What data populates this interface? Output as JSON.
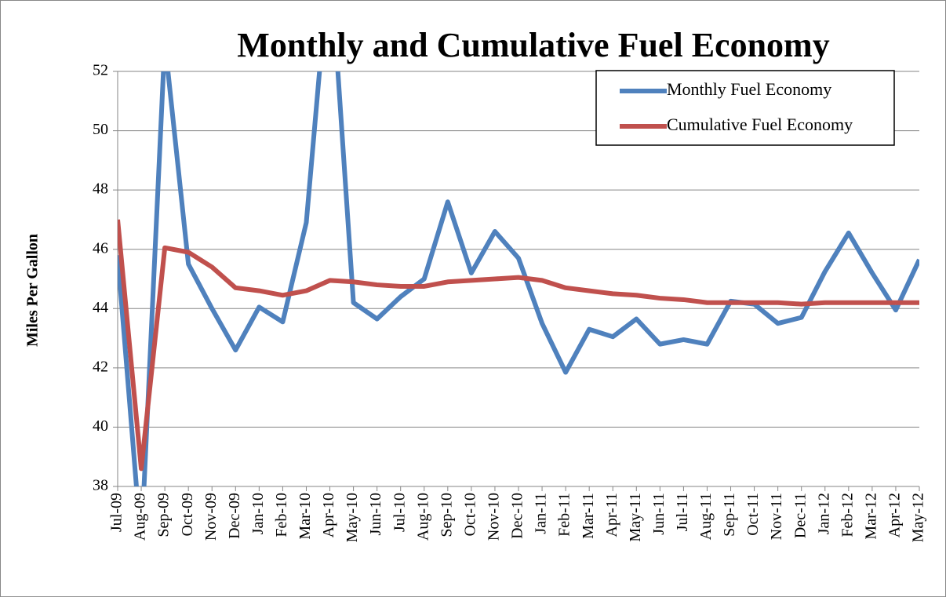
{
  "chart_data": {
    "type": "line",
    "title": "Monthly and Cumulative Fuel Economy",
    "y_label": "Miles Per Gallon",
    "categories": [
      "Jul-09",
      "Aug-09",
      "Sep-09",
      "Oct-09",
      "Nov-09",
      "Dec-09",
      "Jan-10",
      "Feb-10",
      "Mar-10",
      "Apr-10",
      "May-10",
      "Jun-10",
      "Jul-10",
      "Aug-10",
      "Sep-10",
      "Oct-10",
      "Nov-10",
      "Dec-10",
      "Jan-11",
      "Feb-11",
      "Mar-11",
      "Apr-11",
      "May-11",
      "Jun-11",
      "Jul-11",
      "Aug-11",
      "Sep-11",
      "Oct-11",
      "Nov-11",
      "Dec-11",
      "Jan-12",
      "Feb-12",
      "Mar-12",
      "Apr-12",
      "May-12"
    ],
    "series": [
      {
        "name": "Monthly Fuel Economy",
        "color": "#4f81bd",
        "values": [
          45.8,
          36,
          53,
          45.5,
          44.0,
          42.6,
          44.05,
          43.55,
          46.9,
          56,
          44.2,
          43.65,
          44.4,
          45.0,
          47.6,
          45.2,
          46.6,
          45.7,
          43.5,
          41.85,
          43.3,
          43.05,
          43.65,
          42.8,
          42.95,
          42.8,
          44.25,
          44.15,
          43.5,
          43.7,
          45.25,
          46.55,
          45.2,
          43.95,
          45.65
        ]
      },
      {
        "name": "Cumulative Fuel Economy",
        "color": "#c0504d",
        "values": [
          47.0,
          38.6,
          46.05,
          45.9,
          45.4,
          44.7,
          44.6,
          44.45,
          44.6,
          44.95,
          44.9,
          44.8,
          44.75,
          44.75,
          44.9,
          44.95,
          45.0,
          45.05,
          44.95,
          44.7,
          44.6,
          44.5,
          44.45,
          44.35,
          44.3,
          44.2,
          44.2,
          44.2,
          44.2,
          44.15,
          44.2,
          44.2,
          44.2,
          44.2,
          44.2
        ]
      }
    ],
    "ylim": [
      38,
      52
    ],
    "yticks": [
      38,
      40,
      42,
      44,
      46,
      48,
      50,
      52
    ],
    "grid": true,
    "legend": "upper right"
  }
}
